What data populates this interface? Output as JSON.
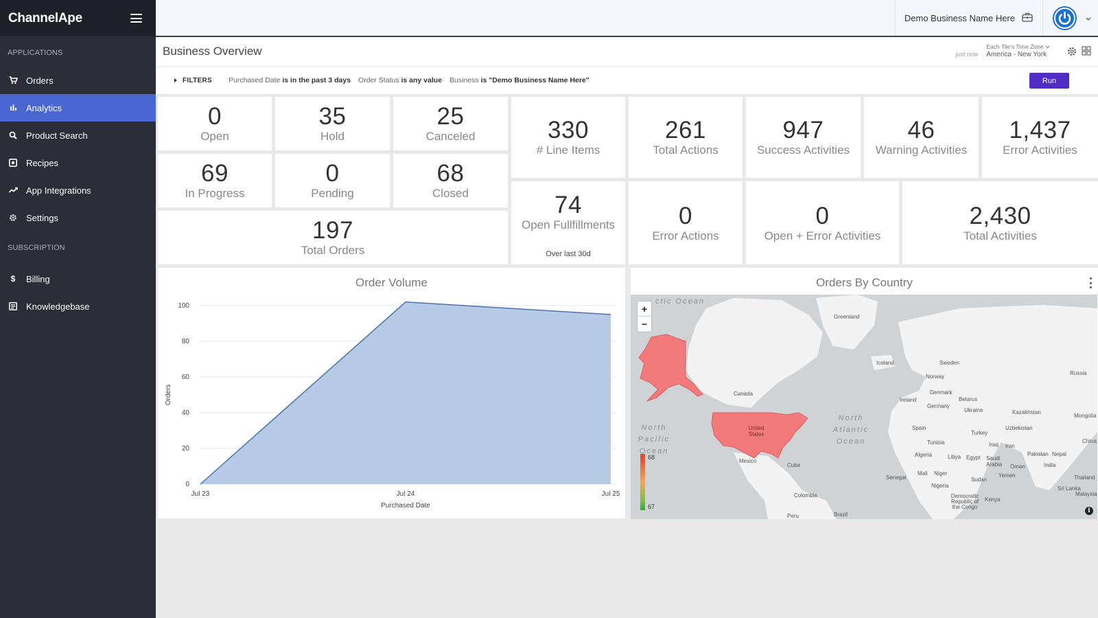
{
  "brand": {
    "name": "ChannelApe"
  },
  "sidebar": {
    "sections": [
      {
        "label": "APPLICATIONS"
      },
      {
        "label": "SUBSCRIPTION"
      }
    ],
    "items": [
      {
        "label": "Orders",
        "icon": "cart-icon"
      },
      {
        "label": "Analytics",
        "icon": "bar-chart-icon"
      },
      {
        "label": "Product Search",
        "icon": "search-icon"
      },
      {
        "label": "Recipes",
        "icon": "recipe-icon"
      },
      {
        "label": "App Integrations",
        "icon": "integration-icon"
      },
      {
        "label": "Settings",
        "icon": "gear-icon"
      },
      {
        "label": "Billing",
        "icon": "dollar-icon"
      },
      {
        "label": "Knowledgebase",
        "icon": "book-icon"
      }
    ],
    "active_index": 1
  },
  "topbar": {
    "business_name": "Demo Business Name Here"
  },
  "header": {
    "title": "Business Overview",
    "just_now": "just now",
    "tz_label": "Each Tile's Time Zone",
    "tz_value": "America - New York"
  },
  "filters": {
    "toggle_label": "FILTERS",
    "chips": [
      {
        "field": "Purchased Date",
        "condition": "is in the past 3 days"
      },
      {
        "field": "Order Status",
        "condition": "is any value"
      },
      {
        "field": "Business",
        "condition": "is \"Demo Business Name Here\""
      }
    ],
    "run_label": "Run"
  },
  "tiles": {
    "open": {
      "value": "0",
      "label": "Open"
    },
    "hold": {
      "value": "35",
      "label": "Hold"
    },
    "canceled": {
      "value": "25",
      "label": "Canceled"
    },
    "in_progress": {
      "value": "69",
      "label": "In Progress"
    },
    "pending": {
      "value": "0",
      "label": "Pending"
    },
    "closed": {
      "value": "68",
      "label": "Closed"
    },
    "total_orders": {
      "value": "197",
      "label": "Total Orders"
    },
    "line_items": {
      "value": "330",
      "label": "# Line Items"
    },
    "open_fulfillments": {
      "value": "74",
      "label": "Open Fullfillments",
      "sub": "Over last 30d"
    },
    "total_actions": {
      "value": "261",
      "label": "Total Actions"
    },
    "success_activities": {
      "value": "947",
      "label": "Success Activities"
    },
    "warning_activities": {
      "value": "46",
      "label": "Warning Activities"
    },
    "error_activities": {
      "value": "1,437",
      "label": "Error Activities"
    },
    "error_actions": {
      "value": "0",
      "label": "Error Actions"
    },
    "open_error_activities": {
      "value": "0",
      "label": "Open + Error Activities"
    },
    "total_activities": {
      "value": "2,430",
      "label": "Total Activities"
    }
  },
  "order_volume": {
    "title": "Order Volume",
    "chart_data": {
      "type": "area",
      "x": [
        "Jul 23",
        "Jul 24",
        "Jul 25"
      ],
      "series": [
        {
          "values": [
            0,
            102,
            95
          ]
        }
      ],
      "xlabel": "Purchased Date",
      "ylabel": "Orders",
      "ylim": [
        0,
        100
      ],
      "yticks": [
        0,
        20,
        40,
        60,
        80,
        100
      ],
      "grid": true,
      "fill_color": "#b7cbe6",
      "line_color": "#4a72ab"
    }
  },
  "orders_by_country": {
    "title": "Orders By Country",
    "legend_max": "68",
    "legend_min": "67",
    "highlight_color": "#f27a7a",
    "map_labels": {
      "greenland": "Greenland",
      "iceland": "Iceland",
      "sweden": "Sweden",
      "russia": "Russia",
      "norway": "Norway",
      "canada": "Canada",
      "denmark": "Denmark",
      "ireland": "Ireland",
      "belarus": "Belarus",
      "germany": "Germany",
      "ukraine": "Ukraine",
      "kazakhstan": "Kazakhstan",
      "mongolia": "Mongolia",
      "uzbekistan": "Uzbekistan",
      "spain": "Spain",
      "turkey": "Turkey",
      "united_states": "United States",
      "tunisia": "Tunisia",
      "iraq": "Iraq",
      "iran": "Iran",
      "china": "China",
      "algeria": "Algeria",
      "libya": "Libya",
      "egypt": "Egypt",
      "pakistan": "Pakistan",
      "nepal": "Nepal",
      "saudi_arabia": "Saudi Arabia",
      "india": "India",
      "mexico": "Mexico",
      "oman": "Oman",
      "cuba": "Cuba",
      "mali": "Mali",
      "niger": "Niger",
      "yemen": "Yemen",
      "senegal": "Senegal",
      "thailand": "Thailand",
      "sudan": "Sudan",
      "nigeria": "Nigeria",
      "sri_lanka": "Sri Lanka",
      "colombia": "Colombia",
      "drc": "Democratic Republic of the Congo",
      "kenya": "Kenya",
      "malaysia": "Malaysia",
      "peru": "Peru",
      "brazil": "Brazil"
    },
    "oceans": {
      "arctic": "ctic Ocean",
      "north_pacific": "North Pacific Ocean",
      "north_atlantic": "North Atlantic Ocean"
    }
  }
}
